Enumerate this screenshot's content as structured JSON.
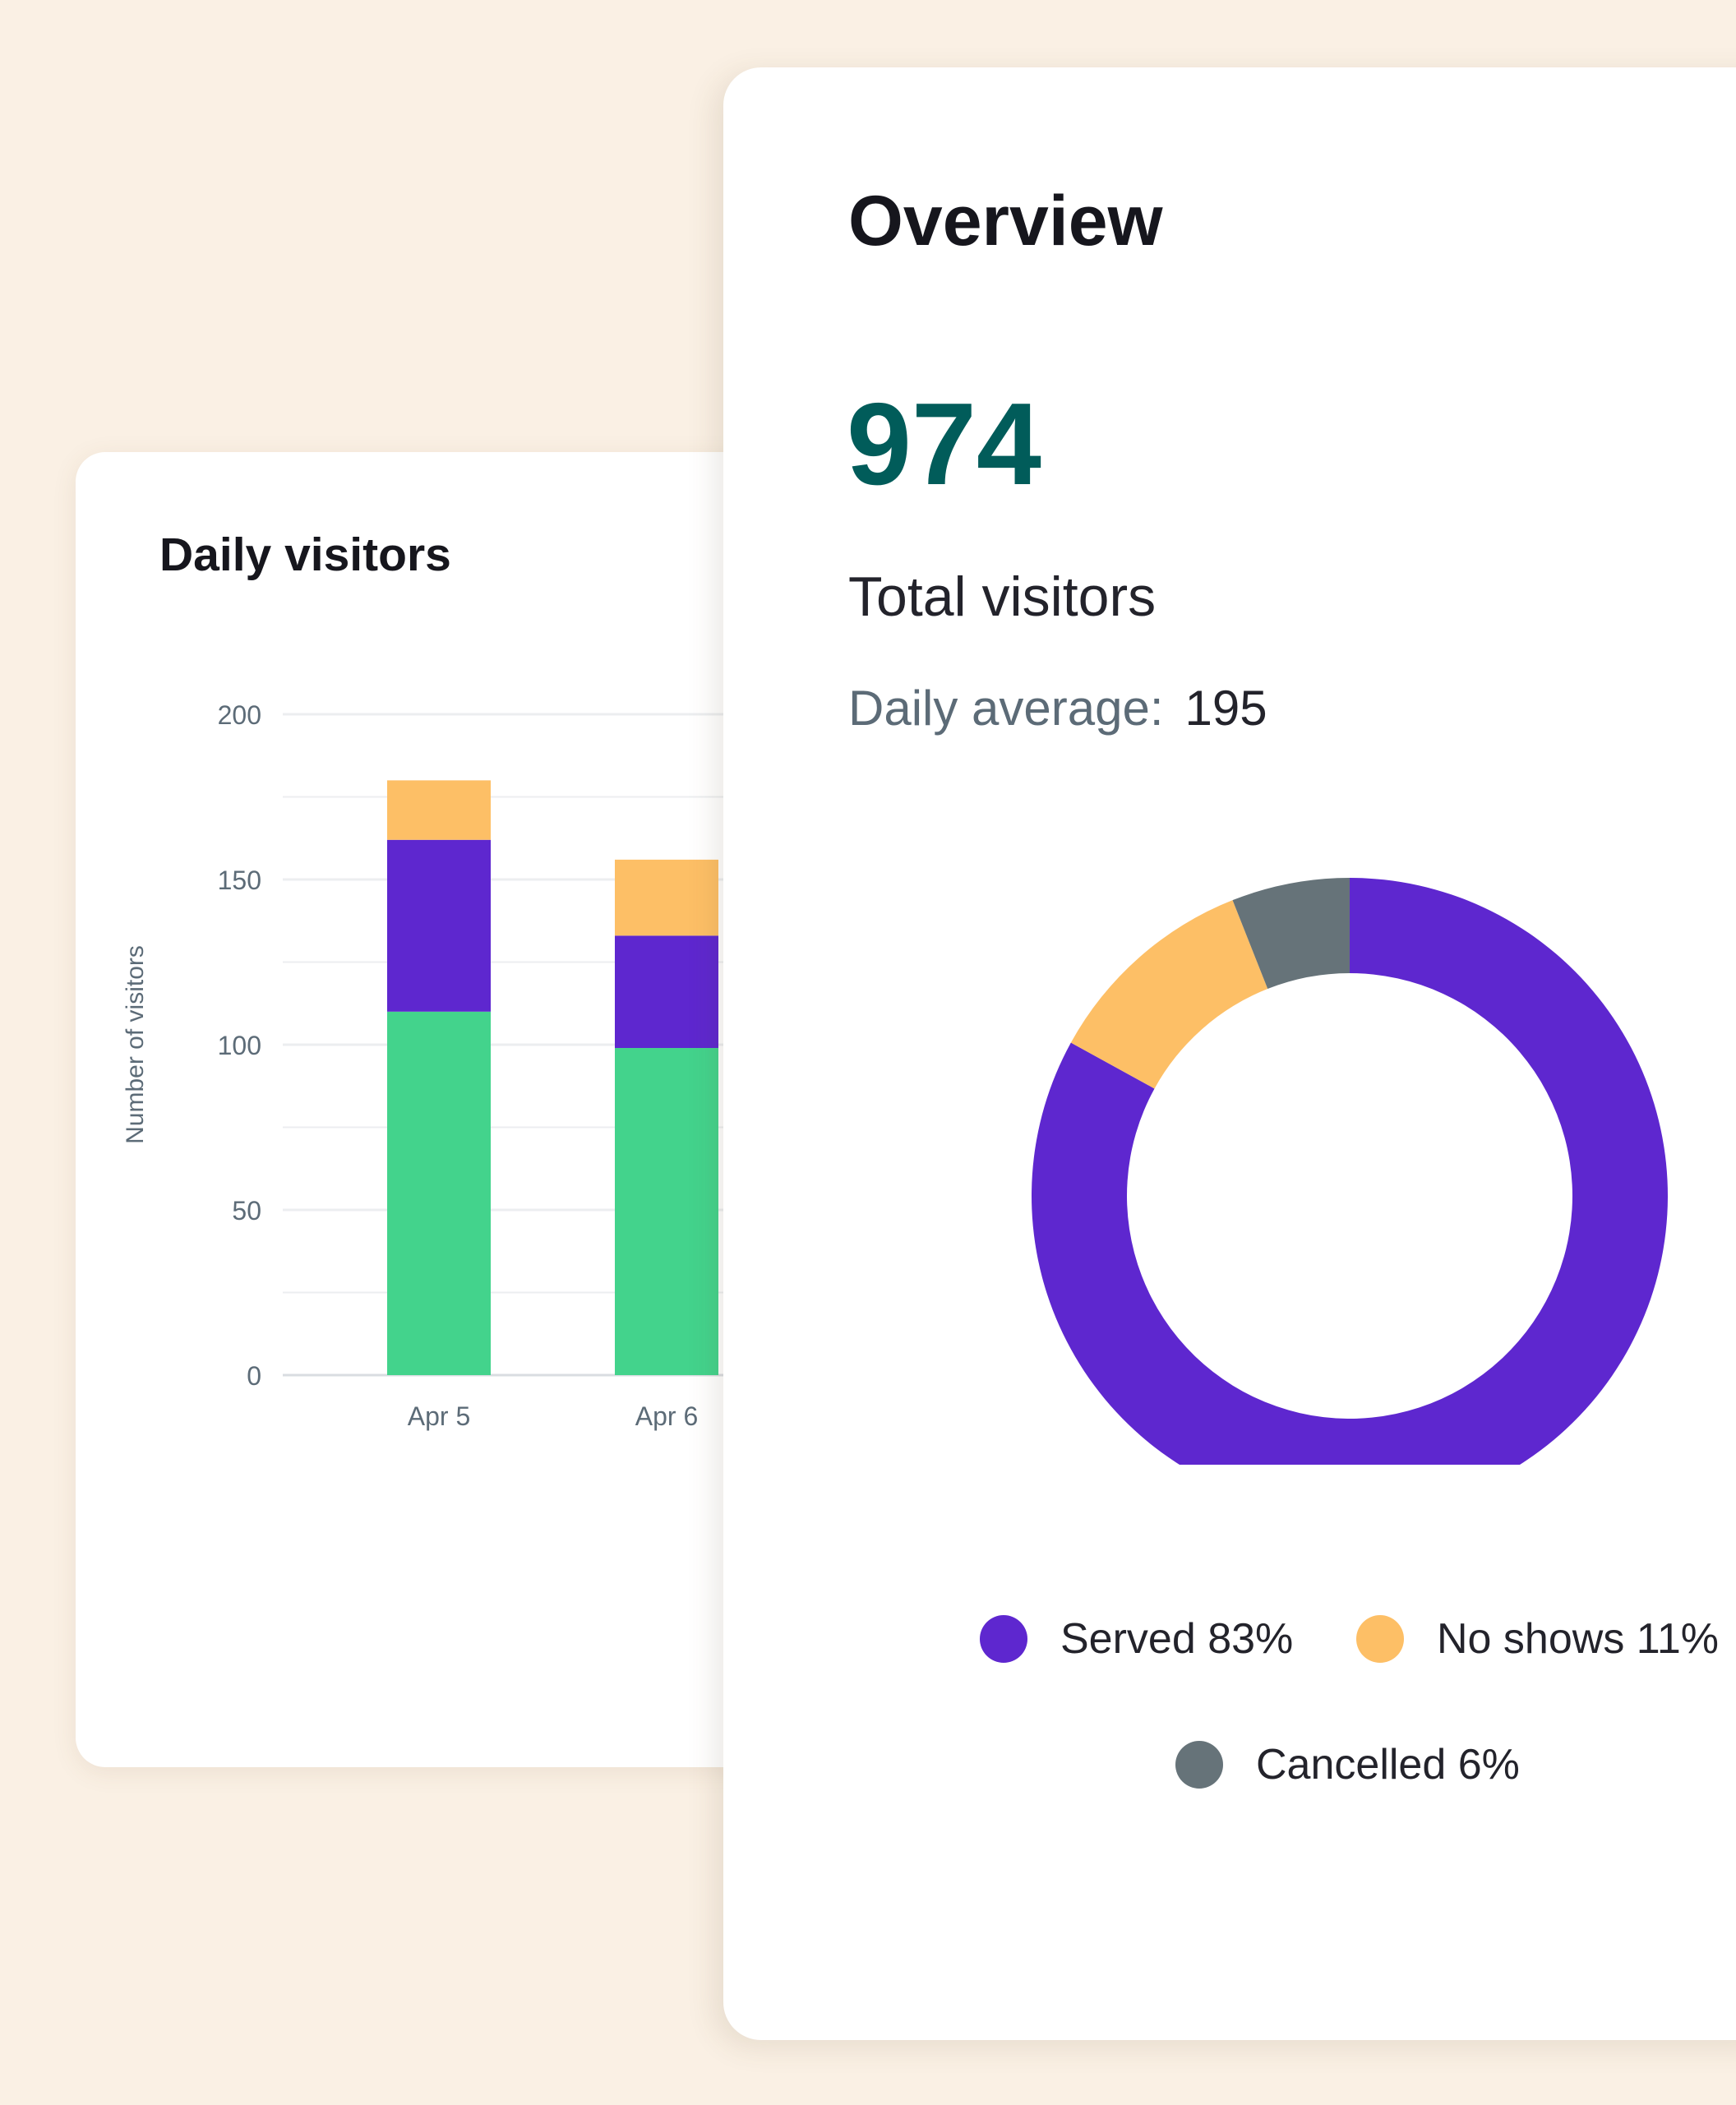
{
  "daily_card": {
    "title": "Daily visitors"
  },
  "overview": {
    "title": "Overview",
    "total_value": "974",
    "total_label": "Total visitors",
    "avg_label": "Daily average:",
    "avg_value": "195"
  },
  "colors": {
    "served": "#5e27cf",
    "no_shows": "#fdbf66",
    "cancelled": "#667379",
    "bar_green": "#43d38c",
    "total_value": "#015c5a"
  },
  "chart_data": [
    {
      "type": "bar",
      "stacked": true,
      "title": "Daily visitors",
      "xlabel": "",
      "ylabel": "Number of visitors",
      "ylim": [
        0,
        200
      ],
      "yticks": [
        0,
        50,
        100,
        150,
        200
      ],
      "grid": true,
      "categories": [
        "Apr 5",
        "Apr 6"
      ],
      "series": [
        {
          "values": [
            110,
            99
          ],
          "color": "#43d38c"
        },
        {
          "values": [
            52,
            34
          ],
          "color": "#5e27cf"
        },
        {
          "values": [
            18,
            23
          ],
          "color": "#fdbf66"
        }
      ]
    },
    {
      "type": "pie",
      "donut": true,
      "slices": [
        {
          "label": "Served",
          "value": 83,
          "display": "Served 83%",
          "color": "#5e27cf"
        },
        {
          "label": "No shows",
          "value": 11,
          "display": "No shows 11%",
          "color": "#fdbf66"
        },
        {
          "label": "Cancelled",
          "value": 6,
          "display": "Cancelled 6%",
          "color": "#667379"
        }
      ],
      "legend": "bottom"
    }
  ]
}
